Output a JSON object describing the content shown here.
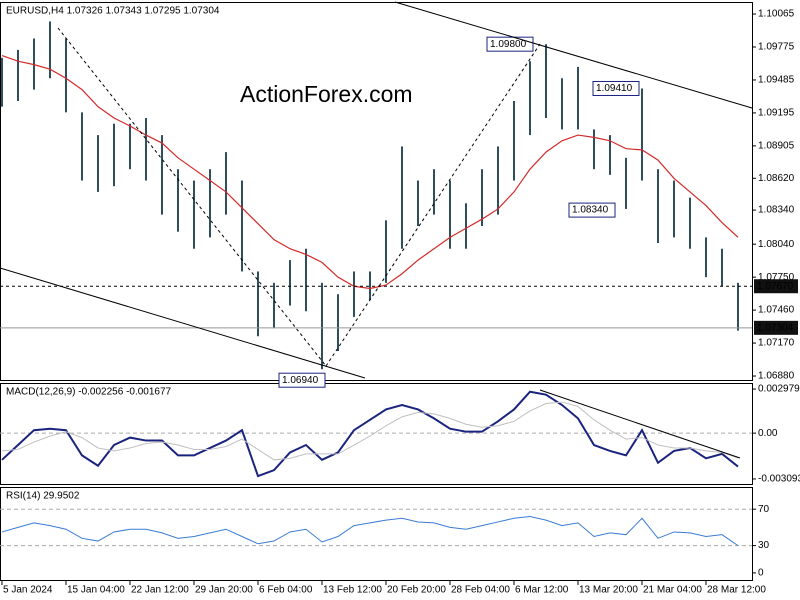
{
  "chart_data": [
    {
      "type": "hilo",
      "title": "EURUSD,H4  1.07326 1.07343 1.07295 1.07304",
      "watermark": "ActionForex.com",
      "color": "#2f4f5f",
      "categories": [
        "5 Jan 2024",
        null,
        null,
        null,
        "15 Jan 04:00",
        null,
        null,
        null,
        "22 Jan 12:00",
        null,
        null,
        null,
        "29 Jan 20:00",
        null,
        null,
        null,
        "6 Feb 04:00",
        null,
        null,
        null,
        "13 Feb 12:00",
        null,
        null,
        null,
        "20 Feb 20:00",
        null,
        null,
        null,
        "28 Feb 04:00",
        null,
        null,
        null,
        "6 Mar 12:00",
        null,
        null,
        null,
        "13 Mar 20:00",
        null,
        null,
        null,
        "21 Mar 04:00",
        null,
        null,
        null,
        "28 Mar 12:00",
        null,
        null
      ],
      "high": [
        1.0968,
        1.0975,
        1.0985,
        1.1,
        1.0985,
        1.092,
        1.09,
        1.091,
        1.091,
        1.0915,
        1.09,
        1.087,
        1.086,
        1.087,
        1.0885,
        1.086,
        1.078,
        1.077,
        1.079,
        1.08,
        1.077,
        1.076,
        1.078,
        1.078,
        1.0825,
        1.089,
        1.086,
        1.087,
        1.086,
        1.084,
        1.087,
        1.089,
        1.093,
        1.0965,
        1.098,
        1.095,
        1.096,
        1.0905,
        1.09,
        1.088,
        1.0941,
        1.087,
        1.086,
        1.0845,
        1.081,
        1.08,
        1.077
      ],
      "low": [
        1.0925,
        1.093,
        1.094,
        1.095,
        1.092,
        1.086,
        1.085,
        1.0855,
        1.087,
        1.086,
        1.083,
        1.0815,
        1.08,
        1.081,
        1.083,
        1.078,
        1.0723,
        1.073,
        1.075,
        1.0745,
        1.0694,
        1.071,
        1.074,
        1.0755,
        1.077,
        1.08,
        1.082,
        1.083,
        1.08,
        1.08,
        1.082,
        1.083,
        1.086,
        1.09,
        1.0915,
        1.0905,
        1.0905,
        1.087,
        1.0865,
        1.0835,
        1.086,
        1.0805,
        1.081,
        1.08,
        1.0775,
        1.0767,
        1.0728
      ],
      "moving_average": {
        "color": "#d42a2a",
        "values": [
          1.097,
          1.0965,
          1.0962,
          1.0958,
          1.095,
          1.094,
          1.0925,
          1.0915,
          1.0908,
          1.09,
          1.0893,
          1.088,
          1.087,
          1.086,
          1.085,
          1.0836,
          1.0822,
          1.0808,
          1.08,
          1.0795,
          1.0788,
          1.0775,
          1.0767,
          1.0765,
          1.0768,
          1.0778,
          1.079,
          1.08,
          1.081,
          1.0818,
          1.0826,
          1.0835,
          1.085,
          1.087,
          1.0885,
          1.0895,
          1.09,
          1.0898,
          1.0895,
          1.0888,
          1.0887,
          1.0878,
          1.0862,
          1.085,
          1.0838,
          1.0823,
          1.081
        ]
      },
      "ylim": [
        1.06845,
        1.10171
      ],
      "yticks": [
        1.10065,
        1.09775,
        1.09485,
        1.09195,
        1.08905,
        {
          "value": 1.0862,
          "label": "1.08620"
        },
        {
          "value": 1.0834,
          "label": "1.08340"
        },
        {
          "value": 1.0804,
          "label": "1.08040"
        },
        {
          "value": 1.0775,
          "label": "1.07750"
        },
        {
          "value": 1.0746,
          "label": "1.07460"
        },
        {
          "value": 1.0717,
          "label": "1.07170"
        },
        {
          "value": 1.0688,
          "label": "1.06880"
        }
      ],
      "annotations": [
        {
          "value": 1.098,
          "label": "1.09800"
        },
        {
          "value": 1.0941,
          "label": "1.09410"
        },
        {
          "value": 1.0834,
          "label": "1.08340"
        },
        {
          "value": 1.0694,
          "label": "1.06940"
        }
      ],
      "levels": [
        {
          "value": 1.0767,
          "label": "1.07670",
          "style": "dashed"
        },
        {
          "value": 1.07304,
          "label": "1.07304",
          "style": "solid"
        }
      ]
    },
    {
      "type": "line",
      "title": "MACD(12,26,9) -0.002256 -0.001677",
      "series": [
        {
          "color": "#1a237e",
          "values": [
            -0.0018,
            -0.0008,
            0.0002,
            0.0003,
            0.0002,
            -0.0015,
            -0.0022,
            -0.0008,
            -0.0003,
            -0.0005,
            -0.0005,
            -0.0015,
            -0.0015,
            -0.001,
            -0.0005,
            0.0002,
            -0.0029,
            -0.0025,
            -0.0013,
            -0.0008,
            -0.0018,
            -0.0013,
            0.0002,
            0.0009,
            0.0016,
            0.0019,
            0.0016,
            0.001,
            0.0003,
            0.0001,
            0.0001,
            0.0008,
            0.0016,
            0.0028,
            0.0026,
            0.0019,
            0.001,
            -0.0008,
            -0.0012,
            -0.0015,
            0.0002,
            -0.002,
            -0.0012,
            -0.001,
            -0.0017,
            -0.0014,
            -0.002256
          ]
        },
        {
          "color": "#c0c0c0",
          "values": [
            -0.0012,
            -0.0011,
            -0.0006,
            -0.0002,
            0.0001,
            -0.0003,
            -0.001,
            -0.0012,
            -0.001,
            -0.0007,
            -0.0006,
            -0.0008,
            -0.0011,
            -0.0011,
            -0.0009,
            -0.0004,
            -0.0011,
            -0.0018,
            -0.0017,
            -0.0014,
            -0.0014,
            -0.0014,
            -0.0008,
            -0.0002,
            0.0005,
            0.0011,
            0.0014,
            0.0013,
            0.001,
            0.0006,
            0.0004,
            0.0005,
            0.0008,
            0.0015,
            0.002,
            0.0021,
            0.0018,
            0.0009,
            0.0002,
            -0.0004,
            -0.0003,
            -0.0008,
            -0.001,
            -0.001,
            -0.0012,
            -0.0013,
            -0.001677
          ]
        }
      ],
      "ylim": [
        -0.003434,
        0.003388
      ],
      "yticks": [
        0.002979,
        {
          "value": 0,
          "label": "0.00"
        },
        -0.003093
      ],
      "reference_lines": [
        0
      ]
    },
    {
      "type": "line",
      "title": "RSI(14) 29.9502",
      "series": [
        {
          "color": "#3a7bd5",
          "values": [
            45,
            50,
            55,
            52,
            48,
            38,
            35,
            45,
            48,
            48,
            44,
            38,
            40,
            44,
            48,
            40,
            32,
            35,
            45,
            48,
            34,
            40,
            52,
            55,
            58,
            60,
            56,
            55,
            50,
            48,
            52,
            56,
            60,
            62,
            58,
            52,
            55,
            40,
            44,
            42,
            60,
            38,
            45,
            44,
            40,
            42,
            29.9502
          ]
        }
      ],
      "ylim": [
        -7.8,
        94.4
      ],
      "yticks": [
        70,
        30,
        0
      ],
      "reference_lines": [
        70,
        30
      ]
    }
  ]
}
